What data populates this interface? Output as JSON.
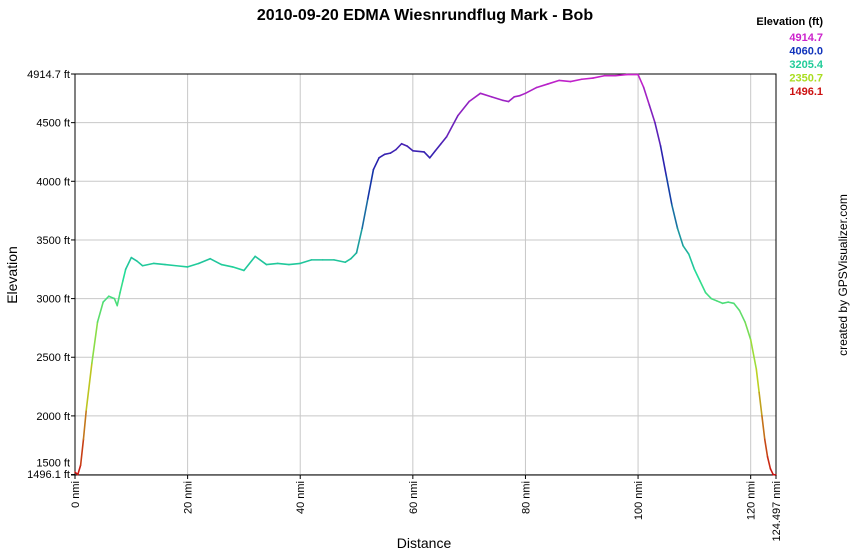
{
  "chart_data": {
    "type": "line",
    "title": "2010-09-20 EDMA Wiesnrundflug Mark - Bob",
    "xlabel": "Distance",
    "ylabel": "Elevation",
    "xlim": [
      0,
      124.497
    ],
    "ylim": [
      1496.1,
      4914.7
    ],
    "x_ticks": [
      {
        "value": 0,
        "label": "0 nmi"
      },
      {
        "value": 20,
        "label": "20 nmi"
      },
      {
        "value": 40,
        "label": "40 nmi"
      },
      {
        "value": 60,
        "label": "60 nmi"
      },
      {
        "value": 80,
        "label": "80 nmi"
      },
      {
        "value": 100,
        "label": "100 nmi"
      },
      {
        "value": 120,
        "label": "120 nmi"
      },
      {
        "value": 124.497,
        "label": "124.497 nmi"
      }
    ],
    "y_ticks": [
      {
        "value": 1496.1,
        "label": "1496.1 ft"
      },
      {
        "value": 1500,
        "label": "1500 ft"
      },
      {
        "value": 2000,
        "label": "2000 ft"
      },
      {
        "value": 2500,
        "label": "2500 ft"
      },
      {
        "value": 3000,
        "label": "3000 ft"
      },
      {
        "value": 3500,
        "label": "3500 ft"
      },
      {
        "value": 4000,
        "label": "4000 ft"
      },
      {
        "value": 4500,
        "label": "4500 ft"
      },
      {
        "value": 4914.7,
        "label": "4914.7 ft"
      }
    ],
    "grid": true,
    "legend_position": "top-right",
    "legend": {
      "title": "Elevation (ft)",
      "entries": [
        {
          "label": "4914.7",
          "color": "#cc22cc"
        },
        {
          "label": "4060.0",
          "color": "#1133bb"
        },
        {
          "label": "3205.4",
          "color": "#22cc99"
        },
        {
          "label": "2350.7",
          "color": "#aadd22"
        },
        {
          "label": "1496.1",
          "color": "#cc1111"
        }
      ]
    },
    "color_stops": [
      {
        "value": 1496.1,
        "color": "#cc1111"
      },
      {
        "value": 2350.7,
        "color": "#bbdd22"
      },
      {
        "value": 3205.4,
        "color": "#22dd99"
      },
      {
        "value": 4060.0,
        "color": "#1122aa"
      },
      {
        "value": 4914.7,
        "color": "#cc22cc"
      }
    ],
    "series": [
      {
        "x": [
          0,
          0.5,
          1,
          1.5,
          2,
          3,
          4,
          5,
          6,
          7,
          7.5,
          8,
          8.5,
          9,
          10,
          11,
          12,
          14,
          16,
          18,
          20,
          22,
          24,
          26,
          28,
          30,
          32,
          34,
          36,
          38,
          40,
          42,
          44,
          46,
          48,
          49,
          50,
          51,
          52,
          53,
          54,
          55,
          56,
          57,
          58,
          59,
          60,
          62,
          63,
          64,
          65,
          66,
          68,
          70,
          72,
          74,
          76,
          77,
          78,
          79,
          80,
          82,
          84,
          86,
          88,
          90,
          92,
          94,
          96,
          98,
          100,
          101,
          102,
          103,
          104,
          105,
          106,
          107,
          108,
          109,
          110,
          111,
          112,
          113,
          114,
          115,
          116,
          117,
          118,
          119,
          120,
          121,
          121.5,
          122,
          122.5,
          123,
          123.5,
          124,
          124.497
        ],
        "y": [
          1520,
          1500,
          1580,
          1800,
          2050,
          2450,
          2800,
          2970,
          3020,
          3000,
          2940,
          3050,
          3150,
          3250,
          3350,
          3320,
          3280,
          3300,
          3290,
          3280,
          3270,
          3300,
          3340,
          3290,
          3270,
          3240,
          3360,
          3290,
          3300,
          3290,
          3300,
          3330,
          3330,
          3330,
          3310,
          3340,
          3390,
          3600,
          3850,
          4100,
          4200,
          4230,
          4240,
          4270,
          4320,
          4300,
          4260,
          4250,
          4200,
          4260,
          4320,
          4380,
          4560,
          4680,
          4750,
          4720,
          4690,
          4680,
          4720,
          4730,
          4750,
          4800,
          4830,
          4860,
          4850,
          4870,
          4880,
          4900,
          4900,
          4910,
          4910,
          4800,
          4650,
          4500,
          4300,
          4050,
          3800,
          3600,
          3450,
          3380,
          3250,
          3150,
          3050,
          3000,
          2980,
          2960,
          2970,
          2960,
          2900,
          2800,
          2650,
          2400,
          2200,
          2000,
          1800,
          1650,
          1550,
          1500,
          1496.1
        ]
      }
    ],
    "credit": "created by GPSVisualizer.com"
  }
}
